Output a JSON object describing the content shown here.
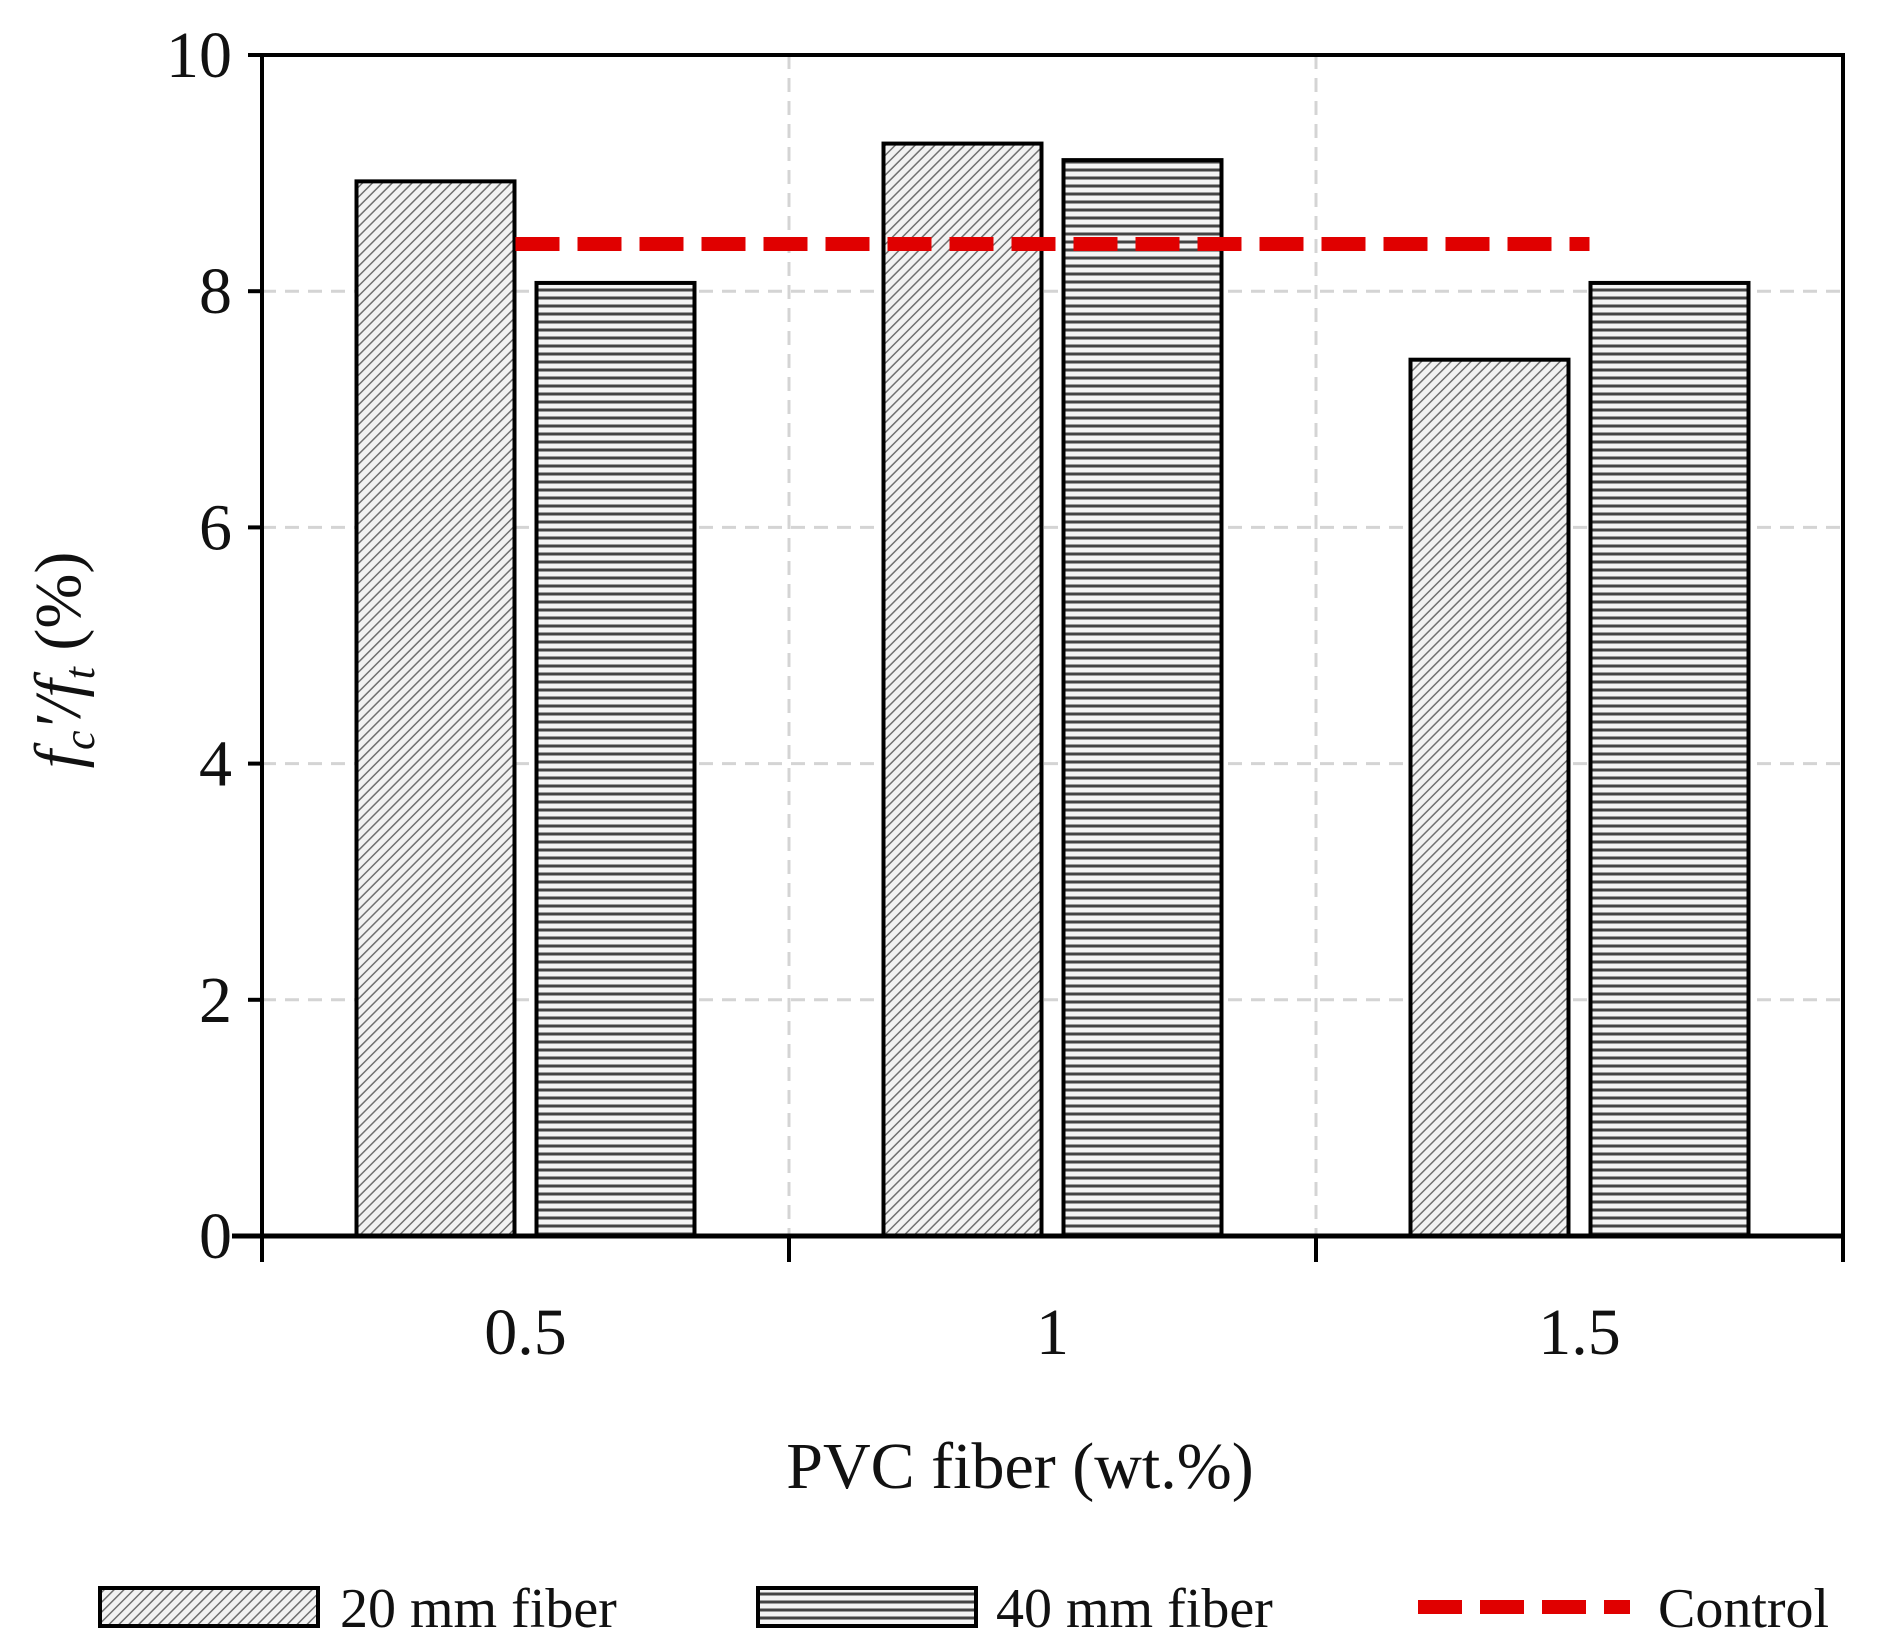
{
  "chart_data": {
    "type": "bar",
    "categories": [
      "0.5",
      "1",
      "1.5"
    ],
    "series": [
      {
        "name": "20 mm fiber",
        "values": [
          8.93,
          9.25,
          7.42
        ],
        "pattern": "diagonal"
      },
      {
        "name": "40 mm fiber",
        "values": [
          8.07,
          9.11,
          8.07
        ],
        "pattern": "horizontal"
      }
    ],
    "reference_line": {
      "name": "Control",
      "value": 8.4,
      "color": "#e00000"
    },
    "title": "",
    "xlabel": "PVC fiber (wt.%)",
    "ylabel": {
      "f1": "f",
      "sub1": "c",
      "prime": "′",
      "slash": "/",
      "f2": "f",
      "sub2": "t",
      "unit": " (%)"
    },
    "ylim": [
      0,
      10
    ],
    "yticks": [
      "0",
      "2",
      "4",
      "6",
      "8",
      "10"
    ],
    "grid": true,
    "legend_position": "bottom"
  }
}
